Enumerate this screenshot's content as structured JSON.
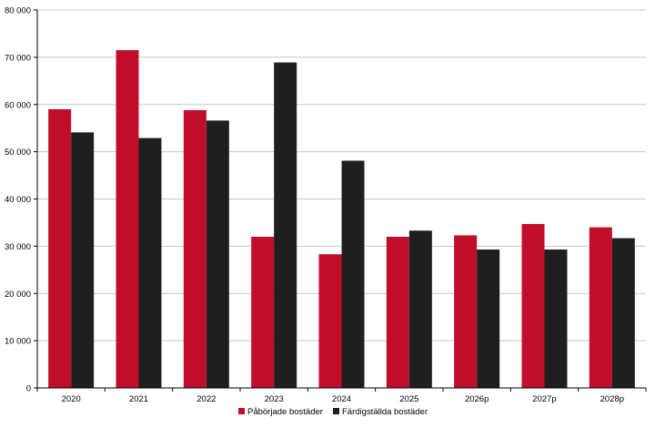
{
  "chart_data": {
    "type": "bar",
    "categories": [
      "2020",
      "2021",
      "2022",
      "2023",
      "2024",
      "2025",
      "2026p",
      "2027p",
      "2028p"
    ],
    "series": [
      {
        "name": "Påbörjade bostäder",
        "color": "#C00D2A",
        "values": [
          59000,
          71500,
          58800,
          32000,
          28300,
          32000,
          32300,
          34700,
          34000
        ]
      },
      {
        "name": "Färdigställda bostäder",
        "color": "#1F1F1F",
        "values": [
          54100,
          52900,
          56600,
          68900,
          48100,
          33300,
          29300,
          29300,
          31700
        ]
      }
    ],
    "ylim": [
      0,
      80000
    ],
    "yticks": [
      0,
      10000,
      20000,
      30000,
      40000,
      50000,
      60000,
      70000,
      80000
    ],
    "ytick_labels": [
      "0",
      "10 000",
      "20 000",
      "30 000",
      "40 000",
      "50 000",
      "60 000",
      "70 000",
      "80 000"
    ],
    "grid": true,
    "legend_position": "bottom-center"
  }
}
